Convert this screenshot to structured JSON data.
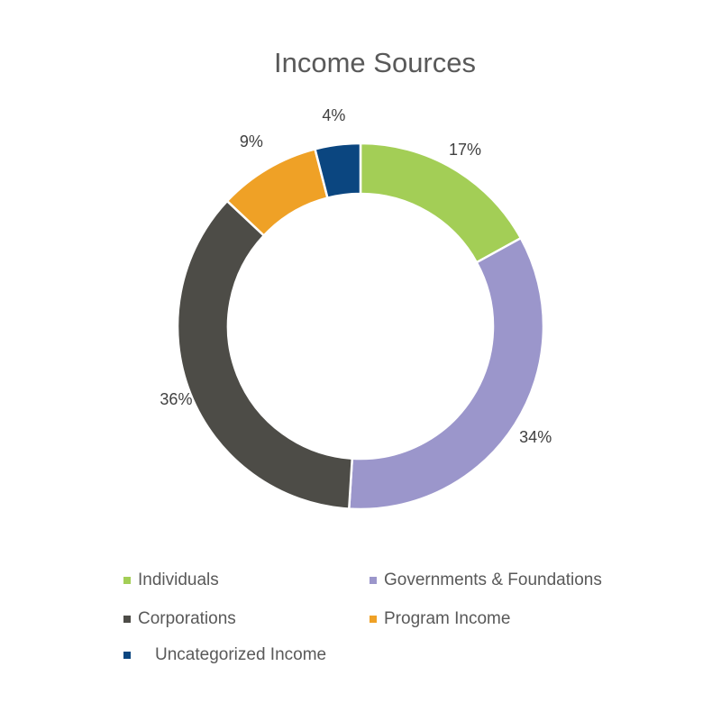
{
  "chart_data": {
    "type": "pie",
    "variant": "donut",
    "title": "Income Sources",
    "categories": [
      "Individuals",
      "Governments & Foundations",
      "Corporations",
      "Program Income",
      "Uncategorized Income"
    ],
    "values": [
      17,
      34,
      36,
      9,
      4
    ],
    "labels": [
      "17%",
      "34%",
      "36%",
      "9%",
      "4%"
    ],
    "colors": [
      "#A3CE56",
      "#9B96CB",
      "#4D4C47",
      "#EFA126",
      "#0B4680"
    ],
    "legend_position": "bottom"
  }
}
